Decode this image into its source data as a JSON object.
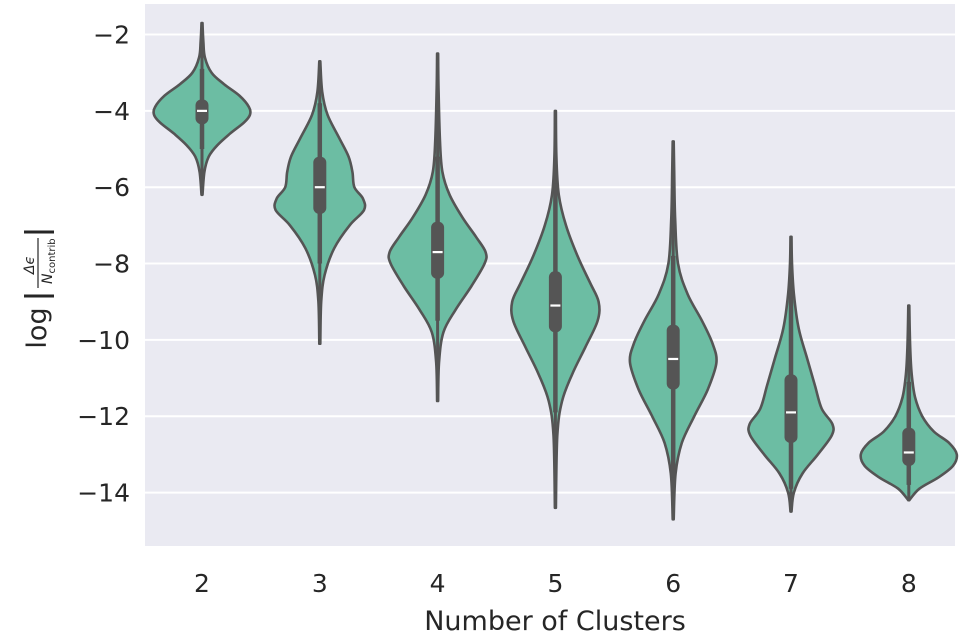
{
  "chart_data": {
    "type": "violin",
    "title": "",
    "xlabel": "Number of Clusters",
    "ylabel": {
      "prefix": "log",
      "numerator": "Δϵ",
      "denominator_main": "N",
      "denominator_sub": "contrib"
    },
    "categories": [
      "2",
      "3",
      "4",
      "5",
      "6",
      "7",
      "8"
    ],
    "ylim": [
      -15.4,
      -1.2
    ],
    "yticks": [
      -2,
      -4,
      -6,
      -8,
      -10,
      -12,
      -14
    ],
    "ytick_labels": [
      "−2",
      "−4",
      "−6",
      "−8",
      "−10",
      "−12",
      "−14"
    ],
    "grid": true,
    "colors": {
      "background": "#eaeaf2",
      "violin_fill": "#6cbda3",
      "violin_edge": "#555555",
      "median": "#ffffff",
      "grid": "#ffffff"
    },
    "violins": [
      {
        "category": "2",
        "min": -6.2,
        "q1": -4.35,
        "median": -4.0,
        "q3": -3.7,
        "max": -1.7,
        "whisker_low": -5.0,
        "whisker_high": -2.9,
        "profile": [
          [
            -6.2,
            0.01
          ],
          [
            -5.6,
            0.05
          ],
          [
            -5.2,
            0.14
          ],
          [
            -4.9,
            0.32
          ],
          [
            -4.6,
            0.58
          ],
          [
            -4.3,
            0.88
          ],
          [
            -4.1,
            1.0
          ],
          [
            -3.9,
            0.98
          ],
          [
            -3.6,
            0.78
          ],
          [
            -3.3,
            0.46
          ],
          [
            -3.0,
            0.2
          ],
          [
            -2.6,
            0.06
          ],
          [
            -2.2,
            0.03
          ],
          [
            -1.7,
            0.01
          ]
        ]
      },
      {
        "category": "3",
        "min": -10.1,
        "q1": -6.7,
        "median": -6.0,
        "q3": -5.2,
        "max": -2.7,
        "whisker_low": -8.0,
        "whisker_high": -3.8,
        "profile": [
          [
            -10.1,
            0.01
          ],
          [
            -9.0,
            0.03
          ],
          [
            -8.3,
            0.1
          ],
          [
            -7.6,
            0.3
          ],
          [
            -7.0,
            0.62
          ],
          [
            -6.6,
            0.92
          ],
          [
            -6.3,
            0.9
          ],
          [
            -6.0,
            0.72
          ],
          [
            -5.6,
            0.68
          ],
          [
            -5.2,
            0.6
          ],
          [
            -4.7,
            0.4
          ],
          [
            -4.1,
            0.16
          ],
          [
            -3.5,
            0.05
          ],
          [
            -2.7,
            0.01
          ]
        ]
      },
      {
        "category": "4",
        "min": -11.6,
        "q1": -8.4,
        "median": -7.7,
        "q3": -6.9,
        "max": -2.5,
        "whisker_low": -9.5,
        "whisker_high": -5.2,
        "profile": [
          [
            -11.6,
            0.01
          ],
          [
            -10.6,
            0.03
          ],
          [
            -9.8,
            0.12
          ],
          [
            -9.2,
            0.38
          ],
          [
            -8.6,
            0.7
          ],
          [
            -8.0,
            0.98
          ],
          [
            -7.7,
            1.0
          ],
          [
            -7.3,
            0.8
          ],
          [
            -6.8,
            0.52
          ],
          [
            -6.2,
            0.25
          ],
          [
            -5.6,
            0.1
          ],
          [
            -4.8,
            0.05
          ],
          [
            -3.5,
            0.02
          ],
          [
            -2.5,
            0.01
          ]
        ]
      },
      {
        "category": "5",
        "min": -14.4,
        "q1": -9.8,
        "median": -9.1,
        "q3": -8.2,
        "max": -4.0,
        "whisker_low": -11.9,
        "whisker_high": -5.9,
        "profile": [
          [
            -14.4,
            0.01
          ],
          [
            -12.5,
            0.04
          ],
          [
            -11.6,
            0.14
          ],
          [
            -10.9,
            0.35
          ],
          [
            -10.2,
            0.62
          ],
          [
            -9.5,
            0.88
          ],
          [
            -9.0,
            0.9
          ],
          [
            -8.5,
            0.72
          ],
          [
            -7.8,
            0.46
          ],
          [
            -7.0,
            0.22
          ],
          [
            -6.2,
            0.07
          ],
          [
            -5.2,
            0.02
          ],
          [
            -4.0,
            0.01
          ]
        ]
      },
      {
        "category": "6",
        "min": -14.7,
        "q1": -11.3,
        "median": -10.5,
        "q3": -9.6,
        "max": -4.8,
        "whisker_low": -13.6,
        "whisker_high": -7.8,
        "profile": [
          [
            -14.7,
            0.01
          ],
          [
            -13.5,
            0.05
          ],
          [
            -12.7,
            0.18
          ],
          [
            -12.0,
            0.44
          ],
          [
            -11.3,
            0.72
          ],
          [
            -10.6,
            0.9
          ],
          [
            -10.1,
            0.82
          ],
          [
            -9.5,
            0.6
          ],
          [
            -8.8,
            0.3
          ],
          [
            -8.0,
            0.1
          ],
          [
            -6.8,
            0.04
          ],
          [
            -5.6,
            0.02
          ],
          [
            -4.8,
            0.01
          ]
        ]
      },
      {
        "category": "7",
        "min": -14.5,
        "q1": -12.7,
        "median": -11.9,
        "q3": -10.9,
        "max": -7.3,
        "whisker_low": -13.9,
        "whisker_high": -8.7,
        "profile": [
          [
            -14.5,
            0.01
          ],
          [
            -14.0,
            0.06
          ],
          [
            -13.5,
            0.24
          ],
          [
            -13.0,
            0.56
          ],
          [
            -12.5,
            0.85
          ],
          [
            -12.2,
            0.86
          ],
          [
            -11.8,
            0.64
          ],
          [
            -11.2,
            0.5
          ],
          [
            -10.5,
            0.34
          ],
          [
            -9.7,
            0.16
          ],
          [
            -8.8,
            0.06
          ],
          [
            -8.0,
            0.02
          ],
          [
            -7.3,
            0.01
          ]
        ]
      },
      {
        "category": "8",
        "min": -14.2,
        "q1": -13.3,
        "median": -12.95,
        "q3": -12.3,
        "max": -9.1,
        "whisker_low": -13.8,
        "whisker_high": -11.1,
        "profile": [
          [
            -14.2,
            0.01
          ],
          [
            -13.9,
            0.22
          ],
          [
            -13.6,
            0.62
          ],
          [
            -13.3,
            0.92
          ],
          [
            -13.0,
            1.0
          ],
          [
            -12.7,
            0.84
          ],
          [
            -12.4,
            0.52
          ],
          [
            -12.0,
            0.28
          ],
          [
            -11.5,
            0.13
          ],
          [
            -10.9,
            0.06
          ],
          [
            -10.2,
            0.03
          ],
          [
            -9.1,
            0.01
          ]
        ]
      }
    ]
  }
}
